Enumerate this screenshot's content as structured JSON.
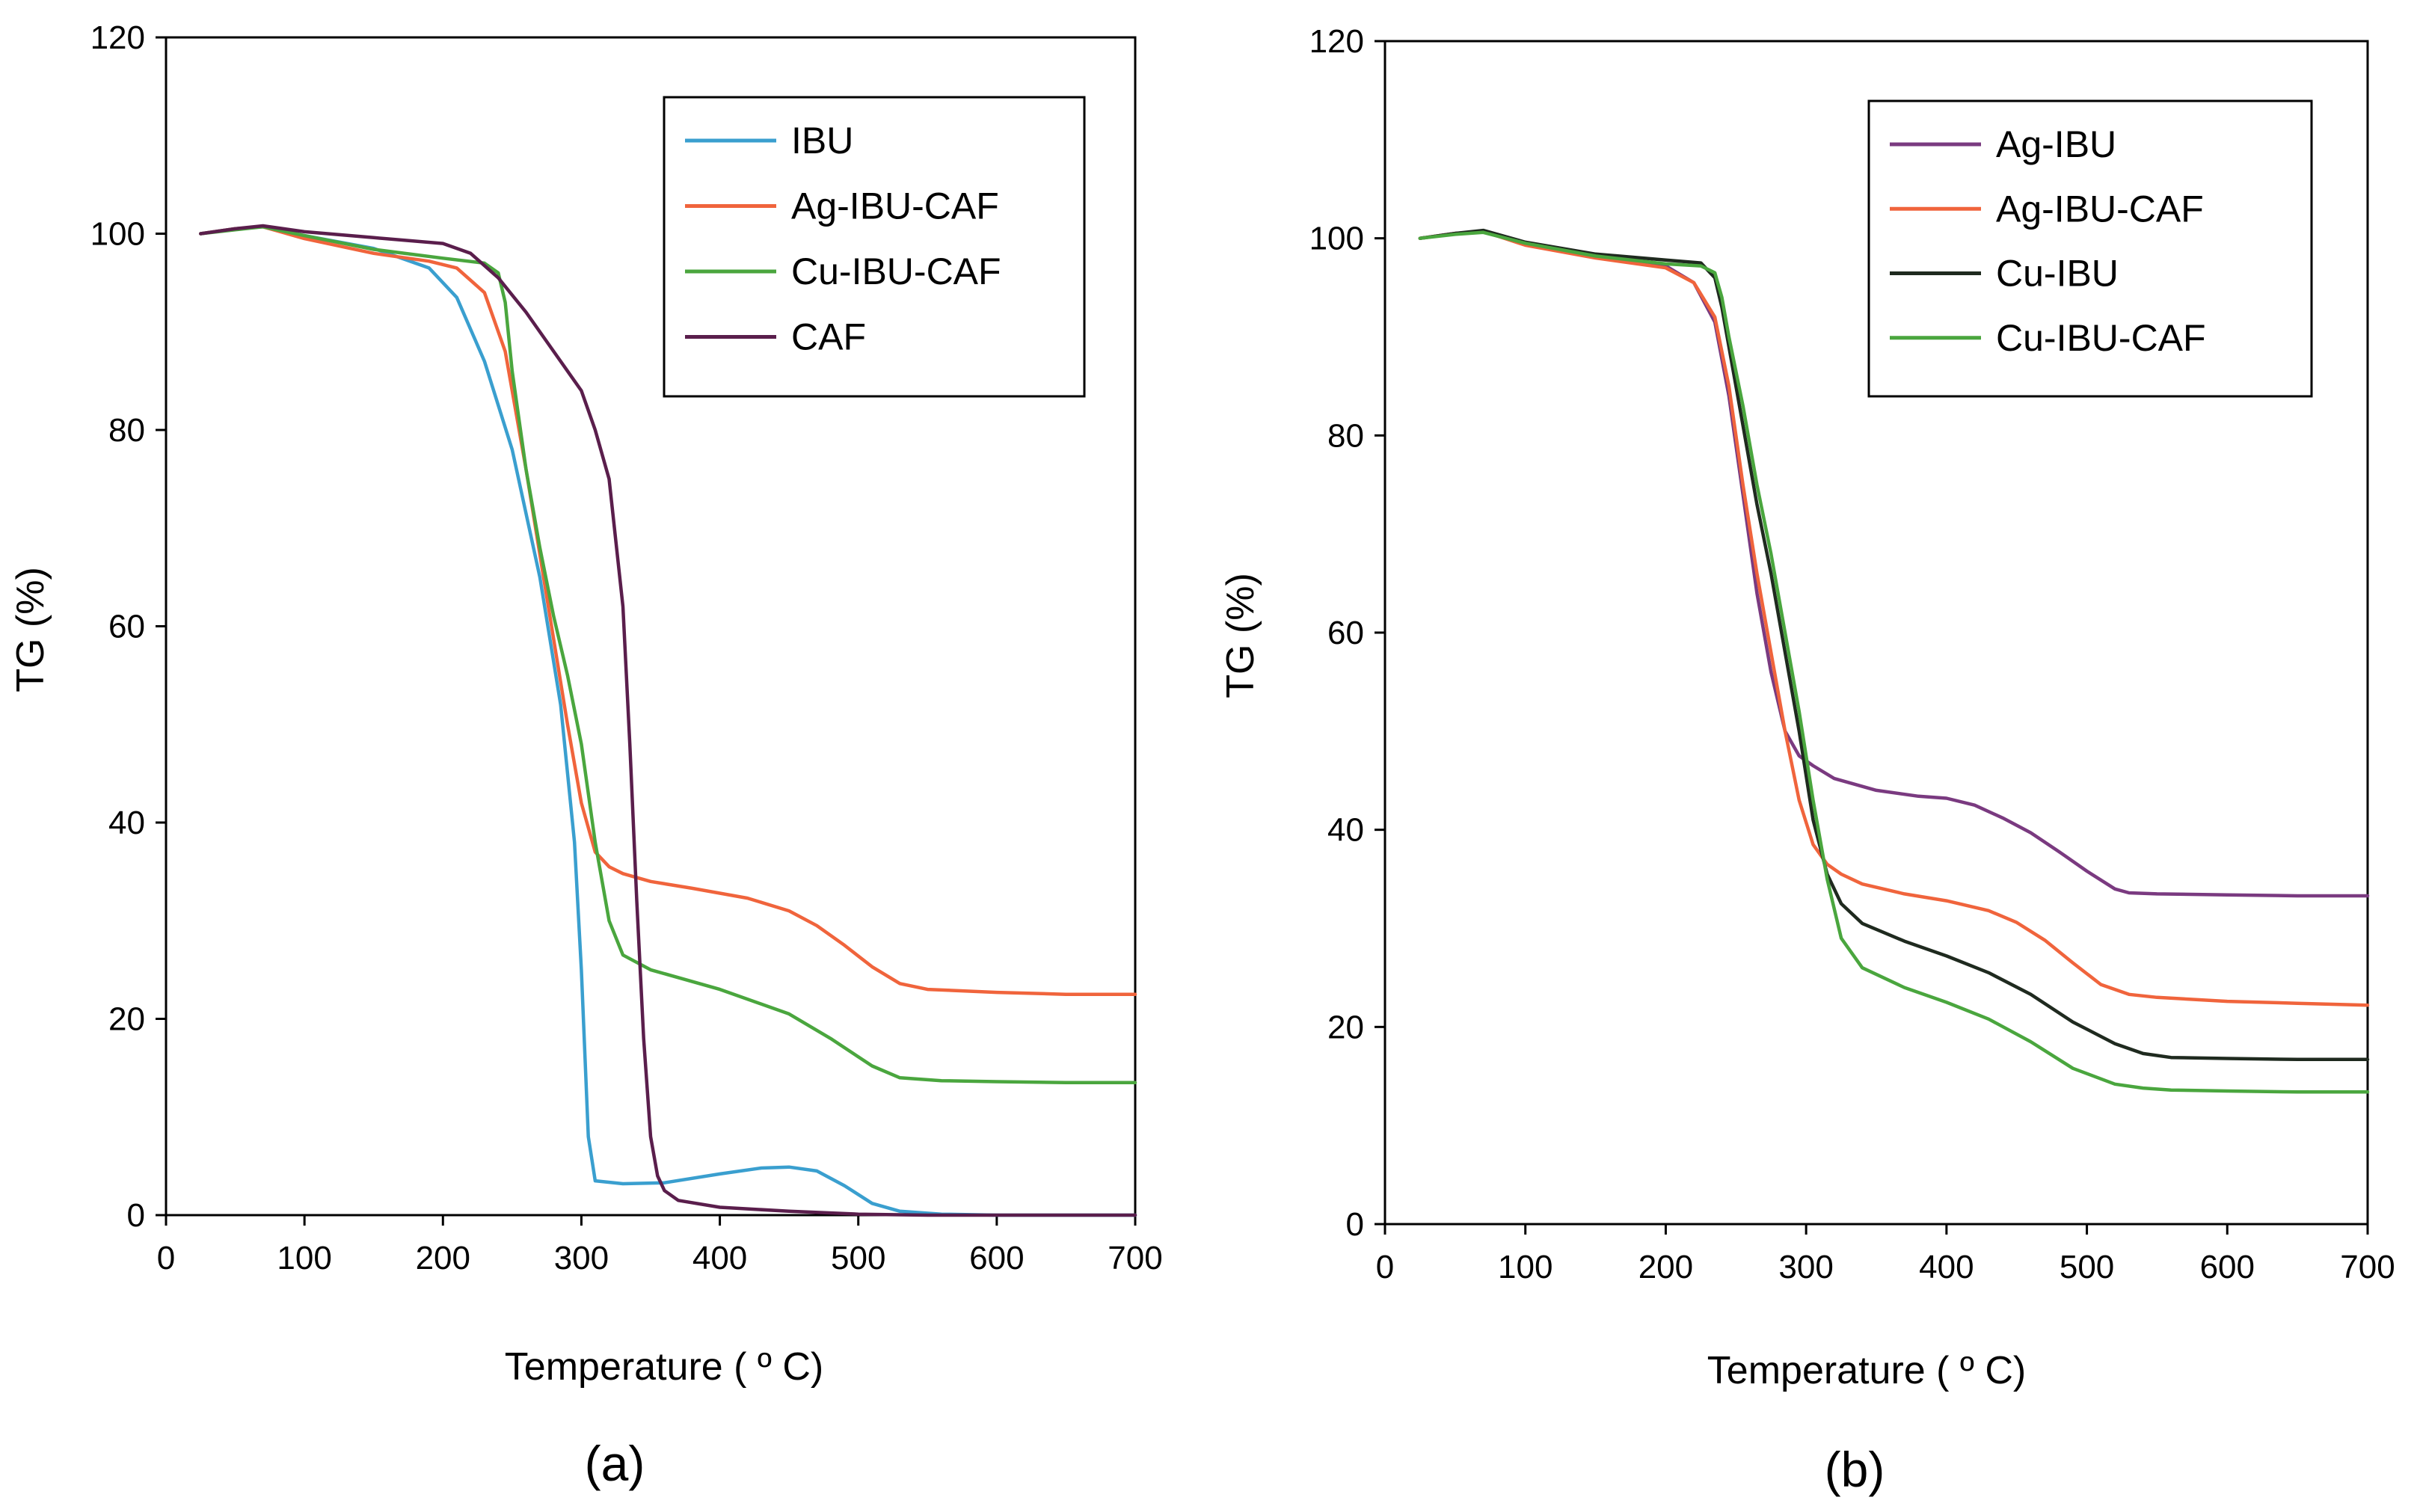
{
  "chart_data": [
    {
      "type": "line",
      "panel_label": "(a)",
      "xlabel": "Temperature ( º C)",
      "ylabel": "TG (%)",
      "xlim": [
        0,
        700
      ],
      "ylim": [
        0,
        120
      ],
      "xticks": [
        "0",
        "100",
        "200",
        "300",
        "400",
        "500",
        "600",
        "700"
      ],
      "yticks": [
        "0",
        "20",
        "40",
        "60",
        "80",
        "100",
        "120"
      ],
      "legend_position": "top-right",
      "series": [
        {
          "name": "IBU",
          "color": "#3a9fcf",
          "x": [
            25,
            50,
            70,
            100,
            150,
            190,
            210,
            230,
            250,
            270,
            285,
            295,
            300,
            305,
            310,
            330,
            360,
            400,
            430,
            450,
            470,
            490,
            510,
            530,
            560,
            600,
            650,
            700
          ],
          "y": [
            100,
            100.5,
            100.7,
            99.8,
            98.5,
            96.5,
            93.5,
            87,
            78,
            65,
            52,
            38,
            25,
            8,
            3.5,
            3.2,
            3.3,
            4.2,
            4.8,
            4.9,
            4.5,
            3,
            1.2,
            0.4,
            0.1,
            0,
            0,
            0
          ]
        },
        {
          "name": "Ag-IBU-CAF",
          "color": "#f0643c",
          "x": [
            25,
            50,
            70,
            100,
            150,
            190,
            210,
            230,
            245,
            260,
            275,
            290,
            300,
            310,
            320,
            330,
            350,
            380,
            420,
            450,
            470,
            490,
            510,
            530,
            550,
            600,
            650,
            700
          ],
          "y": [
            100,
            100.5,
            100.7,
            99.5,
            98,
            97.2,
            96.5,
            94,
            88,
            76,
            63,
            50,
            42,
            37,
            35.5,
            34.8,
            34,
            33.3,
            32.3,
            31,
            29.5,
            27.5,
            25.3,
            23.6,
            23,
            22.7,
            22.5,
            22.5
          ]
        },
        {
          "name": "Cu-IBU-CAF",
          "color": "#4aa63e",
          "x": [
            25,
            50,
            70,
            100,
            150,
            200,
            230,
            240,
            245,
            250,
            260,
            270,
            280,
            290,
            300,
            310,
            320,
            330,
            350,
            400,
            450,
            480,
            510,
            530,
            560,
            600,
            650,
            700
          ],
          "y": [
            100,
            100.4,
            100.7,
            99.8,
            98.4,
            97.5,
            97,
            96,
            93,
            86,
            76,
            68,
            61,
            55,
            48,
            38,
            30,
            26.5,
            25,
            23,
            20.5,
            18,
            15.2,
            14,
            13.7,
            13.6,
            13.5,
            13.5
          ]
        },
        {
          "name": "CAF",
          "color": "#5a1e4c",
          "x": [
            25,
            50,
            70,
            100,
            150,
            200,
            220,
            240,
            260,
            280,
            300,
            310,
            320,
            330,
            335,
            340,
            345,
            350,
            355,
            360,
            370,
            400,
            450,
            500,
            550,
            600,
            650,
            700
          ],
          "y": [
            100,
            100.5,
            100.8,
            100.2,
            99.6,
            99,
            98,
            95.5,
            92,
            88,
            84,
            80,
            75,
            62,
            48,
            32,
            18,
            8,
            4,
            2.5,
            1.5,
            0.8,
            0.4,
            0.1,
            0,
            0,
            0,
            0
          ]
        }
      ]
    },
    {
      "type": "line",
      "panel_label": "(b)",
      "xlabel": "Temperature ( º C)",
      "ylabel": "TG (%)",
      "xlim": [
        0,
        700
      ],
      "ylim": [
        0,
        120
      ],
      "xticks": [
        "0",
        "100",
        "200",
        "300",
        "400",
        "500",
        "600",
        "700"
      ],
      "yticks": [
        "0",
        "20",
        "40",
        "60",
        "80",
        "100",
        "120"
      ],
      "legend_position": "top-right",
      "series": [
        {
          "name": "Ag-IBU",
          "color": "#7a3a80",
          "x": [
            25,
            50,
            70,
            100,
            150,
            200,
            220,
            235,
            245,
            255,
            265,
            275,
            285,
            295,
            305,
            320,
            350,
            380,
            400,
            420,
            440,
            460,
            480,
            500,
            520,
            530,
            550,
            600,
            650,
            700
          ],
          "y": [
            100,
            100.5,
            100.7,
            99.5,
            98.2,
            97.2,
            95.5,
            91.5,
            84,
            74,
            64,
            56,
            50,
            47.5,
            46.5,
            45.2,
            44,
            43.4,
            43.2,
            42.5,
            41.2,
            39.7,
            37.8,
            35.8,
            34,
            33.6,
            33.5,
            33.4,
            33.3,
            33.3
          ]
        },
        {
          "name": "Ag-IBU-CAF",
          "color": "#f0643c",
          "x": [
            25,
            50,
            70,
            100,
            150,
            200,
            220,
            235,
            245,
            255,
            265,
            275,
            285,
            295,
            305,
            315,
            325,
            340,
            370,
            400,
            430,
            450,
            470,
            490,
            510,
            530,
            550,
            600,
            650,
            700
          ],
          "y": [
            100,
            100.5,
            100.7,
            99.3,
            98,
            97,
            95.5,
            92,
            85,
            75,
            66,
            58,
            50,
            43,
            38.5,
            36.5,
            35.5,
            34.5,
            33.5,
            32.8,
            31.8,
            30.6,
            28.8,
            26.5,
            24.3,
            23.3,
            23,
            22.6,
            22.4,
            22.2
          ]
        },
        {
          "name": "Cu-IBU",
          "color": "#1f2a1f",
          "x": [
            25,
            50,
            70,
            100,
            150,
            200,
            225,
            235,
            240,
            245,
            255,
            265,
            275,
            285,
            295,
            305,
            315,
            325,
            340,
            370,
            400,
            430,
            460,
            490,
            520,
            540,
            560,
            600,
            650,
            700
          ],
          "y": [
            100,
            100.5,
            100.8,
            99.6,
            98.4,
            97.8,
            97.5,
            96,
            93,
            89,
            81,
            73,
            66,
            58,
            50,
            41,
            35.5,
            32.5,
            30.5,
            28.7,
            27.2,
            25.5,
            23.3,
            20.5,
            18.3,
            17.3,
            16.9,
            16.8,
            16.7,
            16.7
          ]
        },
        {
          "name": "Cu-IBU-CAF",
          "color": "#4aa63e",
          "x": [
            25,
            50,
            70,
            100,
            150,
            200,
            225,
            235,
            240,
            245,
            255,
            265,
            275,
            285,
            295,
            305,
            315,
            325,
            340,
            370,
            400,
            430,
            460,
            490,
            520,
            540,
            560,
            600,
            650,
            700
          ],
          "y": [
            100,
            100.4,
            100.6,
            99.5,
            98.2,
            97.4,
            97.2,
            96.5,
            94,
            90,
            83,
            75,
            68,
            60,
            52,
            43,
            35,
            29,
            26,
            24,
            22.5,
            20.8,
            18.5,
            15.8,
            14.2,
            13.8,
            13.6,
            13.5,
            13.4,
            13.4
          ]
        }
      ]
    }
  ]
}
